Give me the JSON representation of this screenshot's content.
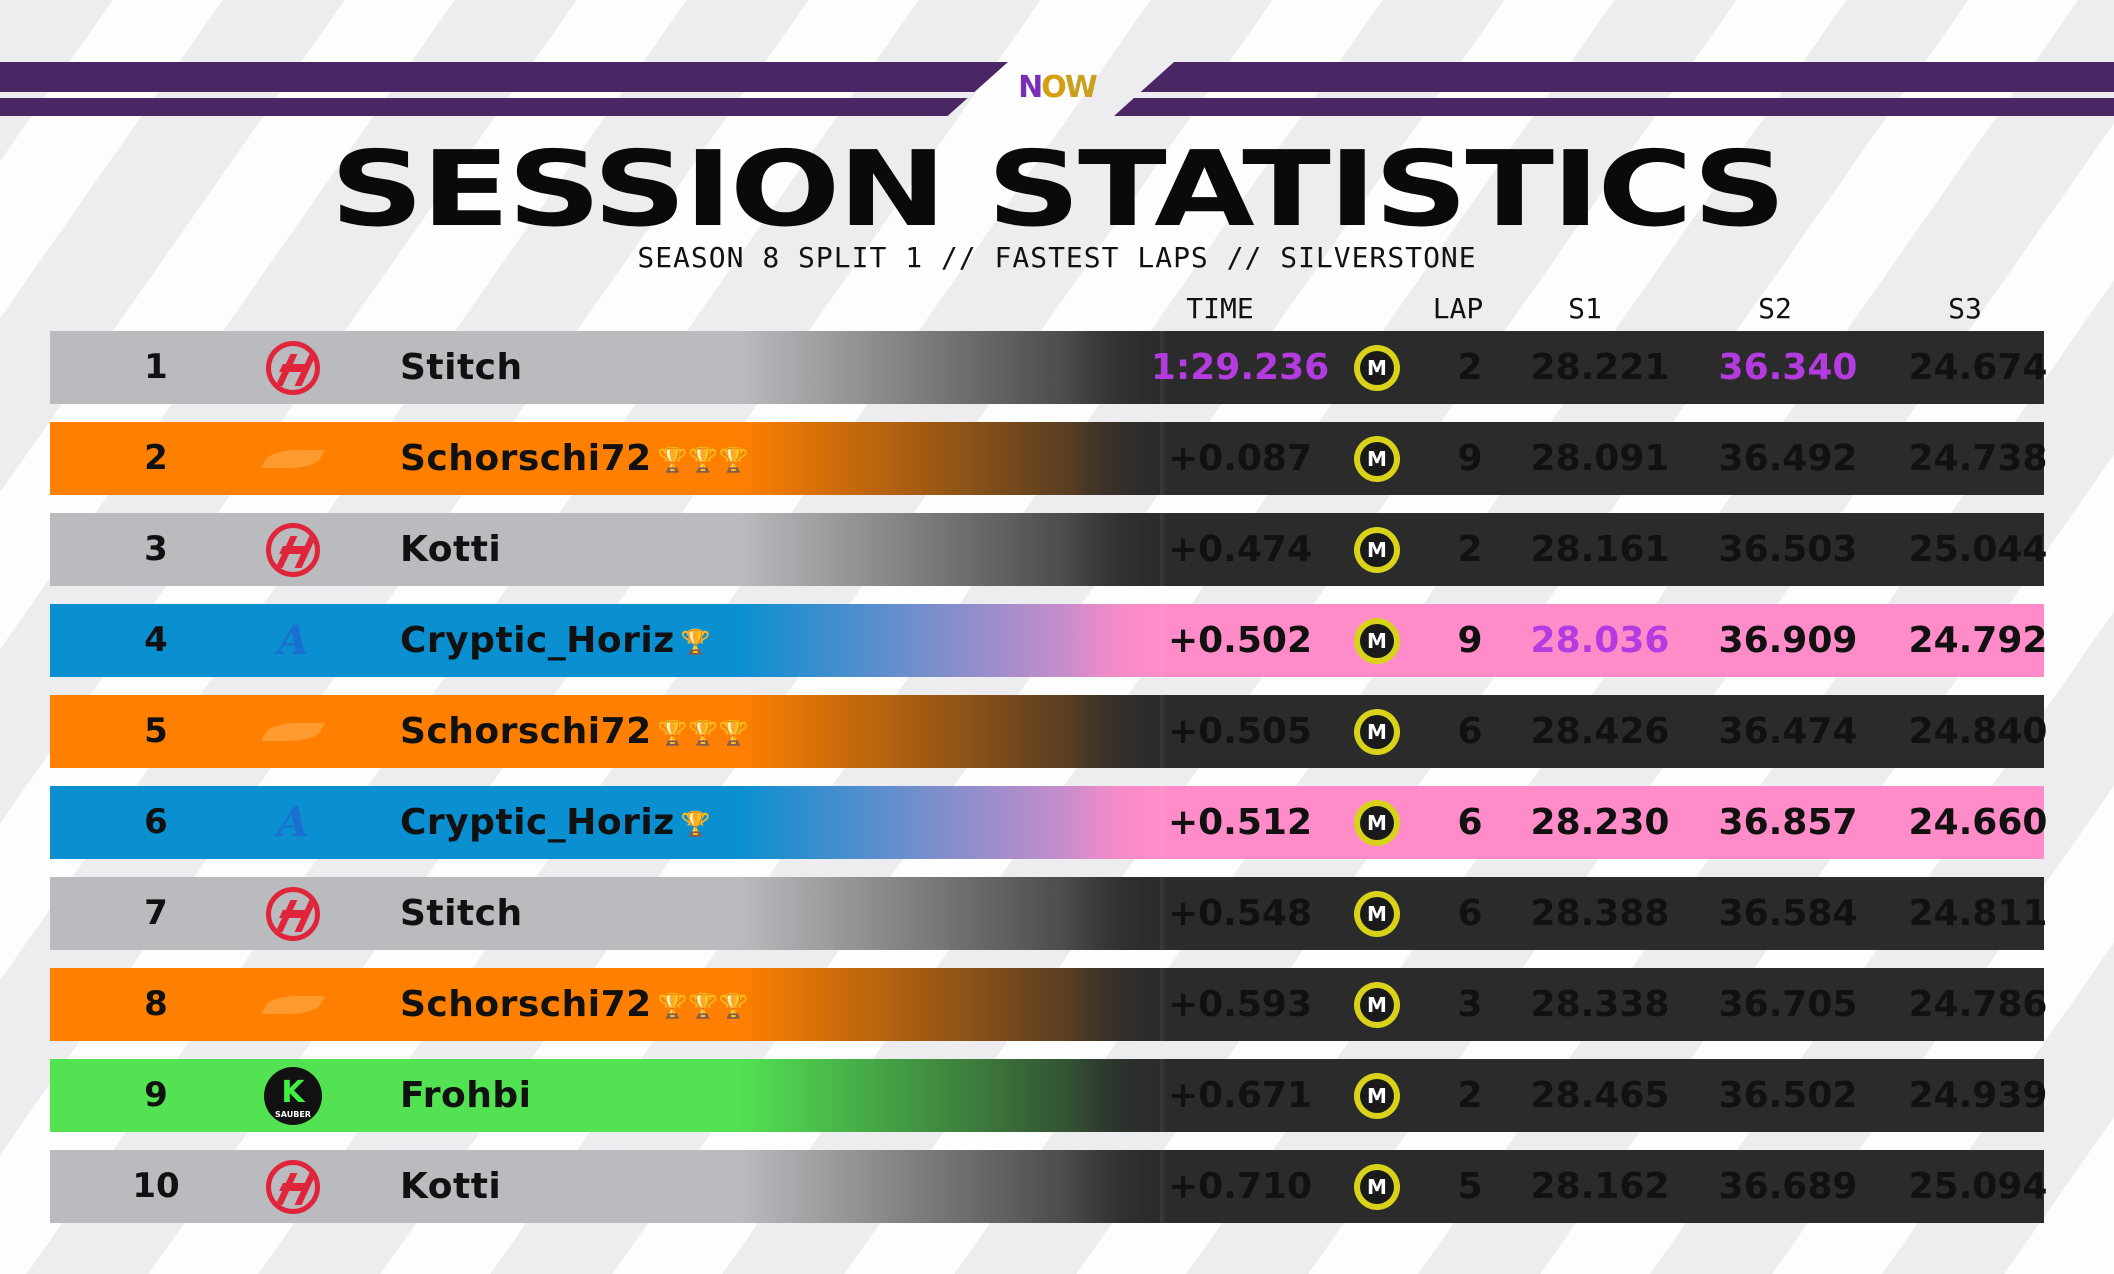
{
  "header": {
    "logo_text_n": "N",
    "logo_text_o": "O",
    "logo_text_w": "W",
    "title": "SESSION STATISTICS",
    "subtitle": "SEASON 8 SPLIT 1 // FASTEST LAPS // SILVERSTONE"
  },
  "columns": {
    "time": "TIME",
    "lap": "LAP",
    "s1": "S1",
    "s2": "S2",
    "s3": "S3"
  },
  "colors": {
    "haas_left": "#b9bbbe",
    "mclaren_left": "#ff8000",
    "alpine_left": "#0a8fd0",
    "kick_left": "#52e252",
    "dark_right": "#2b2b2b",
    "pink_right": "#ff8cc8",
    "purple_best": "#b43be0",
    "topbar": "#4a2664"
  },
  "rows": [
    {
      "pos": "1",
      "team": "haas",
      "driver": "Stitch",
      "trophies": "",
      "time": "1:29.236",
      "lap": "2",
      "s1": "28.221",
      "s2": "36.340",
      "s3": "24.674",
      "time_best": true,
      "s1_best": false,
      "s2_best": true,
      "highlight": false
    },
    {
      "pos": "2",
      "team": "mclaren",
      "driver": "Schorschi72",
      "trophies": "🏆🏆🏆",
      "time": "+0.087",
      "lap": "9",
      "s1": "28.091",
      "s2": "36.492",
      "s3": "24.738",
      "time_best": false,
      "s1_best": false,
      "s2_best": false,
      "highlight": false
    },
    {
      "pos": "3",
      "team": "haas",
      "driver": "Kotti",
      "trophies": "",
      "time": "+0.474",
      "lap": "2",
      "s1": "28.161",
      "s2": "36.503",
      "s3": "25.044",
      "time_best": false,
      "s1_best": false,
      "s2_best": false,
      "highlight": false
    },
    {
      "pos": "4",
      "team": "alpine",
      "driver": "Cryptic_Horiz",
      "trophies": "🏆",
      "time": "+0.502",
      "lap": "9",
      "s1": "28.036",
      "s2": "36.909",
      "s3": "24.792",
      "time_best": false,
      "s1_best": true,
      "s2_best": false,
      "highlight": true
    },
    {
      "pos": "5",
      "team": "mclaren",
      "driver": "Schorschi72",
      "trophies": "🏆🏆🏆",
      "time": "+0.505",
      "lap": "6",
      "s1": "28.426",
      "s2": "36.474",
      "s3": "24.840",
      "time_best": false,
      "s1_best": false,
      "s2_best": false,
      "highlight": false
    },
    {
      "pos": "6",
      "team": "alpine",
      "driver": "Cryptic_Horiz",
      "trophies": "🏆",
      "time": "+0.512",
      "lap": "6",
      "s1": "28.230",
      "s2": "36.857",
      "s3": "24.660",
      "time_best": false,
      "s1_best": false,
      "s2_best": false,
      "highlight": true
    },
    {
      "pos": "7",
      "team": "haas",
      "driver": "Stitch",
      "trophies": "",
      "time": "+0.548",
      "lap": "6",
      "s1": "28.388",
      "s2": "36.584",
      "s3": "24.811",
      "time_best": false,
      "s1_best": false,
      "s2_best": false,
      "highlight": false
    },
    {
      "pos": "8",
      "team": "mclaren",
      "driver": "Schorschi72",
      "trophies": "🏆🏆🏆",
      "time": "+0.593",
      "lap": "3",
      "s1": "28.338",
      "s2": "36.705",
      "s3": "24.786",
      "time_best": false,
      "s1_best": false,
      "s2_best": false,
      "highlight": false
    },
    {
      "pos": "9",
      "team": "kick",
      "driver": "Frohbi",
      "trophies": "",
      "time": "+0.671",
      "lap": "2",
      "s1": "28.465",
      "s2": "36.502",
      "s3": "24.939",
      "time_best": false,
      "s1_best": false,
      "s2_best": false,
      "highlight": false
    },
    {
      "pos": "10",
      "team": "haas",
      "driver": "Kotti",
      "trophies": "",
      "time": "+0.710",
      "lap": "5",
      "s1": "28.162",
      "s2": "36.689",
      "s3": "25.094",
      "time_best": false,
      "s1_best": false,
      "s2_best": false,
      "highlight": false
    }
  ],
  "icons": {
    "lap_badge_letter": "M",
    "kick_letter": "K",
    "kick_sub": "SAUBER",
    "alpine_letter": "A"
  }
}
